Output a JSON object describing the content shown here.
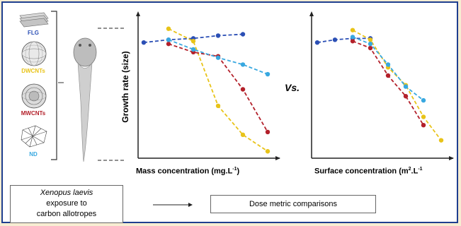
{
  "materials": [
    {
      "label": "FLG",
      "color": "#2b4fb5"
    },
    {
      "label": "DWCNTs",
      "color": "#e8c318"
    },
    {
      "label": "MWCNTs",
      "color": "#b3202a"
    },
    {
      "label": "ND",
      "color": "#38a8e0"
    }
  ],
  "ylabel": "Growth rate (size)",
  "vs_label": "Vs.",
  "bottom": {
    "exposure_line1": "Xenopus laevis",
    "exposure_line2": "exposure to",
    "exposure_line3": "carbon allotropes",
    "comparison": "Dose metric comparisons"
  },
  "chart_data": [
    {
      "type": "line",
      "xlabel": "Mass concentration (mg.L",
      "xlabel_sup": "-1",
      "xlabel_close": ")",
      "ylabel": "Growth rate (size)",
      "x": [
        1,
        2,
        3,
        4,
        5,
        6
      ],
      "ylim": [
        0,
        1
      ],
      "series": [
        {
          "color": "#2b4fb5",
          "x": [
            0,
            1,
            2,
            3,
            4
          ],
          "values": [
            0.84,
            0.86,
            0.87,
            0.89,
            0.9
          ]
        },
        {
          "color": "#e8c318",
          "x": [
            1,
            2,
            3,
            4,
            5
          ],
          "values": [
            0.94,
            0.85,
            0.38,
            0.17,
            0.05
          ]
        },
        {
          "color": "#b3202a",
          "x": [
            1,
            2,
            3,
            4,
            5
          ],
          "values": [
            0.83,
            0.77,
            0.74,
            0.5,
            0.19
          ]
        },
        {
          "color": "#38a8e0",
          "x": [
            1,
            2,
            3,
            4,
            5
          ],
          "values": [
            0.86,
            0.79,
            0.73,
            0.68,
            0.61
          ]
        }
      ]
    },
    {
      "type": "line",
      "xlabel": "Surface concentration (m",
      "xlabel_sup": "2",
      "xlabel_close": ".L",
      "xlabel_sup2": "-1",
      "ylabel": "Growth rate (size)",
      "ylim": [
        0,
        1
      ],
      "series": [
        {
          "color": "#2b4fb5",
          "x": [
            0,
            1,
            2,
            3
          ],
          "values": [
            0.84,
            0.86,
            0.87,
            0.87
          ]
        },
        {
          "color": "#e8c318",
          "x": [
            2,
            3,
            4,
            5,
            6,
            7
          ],
          "values": [
            0.93,
            0.86,
            0.66,
            0.53,
            0.3,
            0.13
          ]
        },
        {
          "color": "#b3202a",
          "x": [
            2,
            3,
            4,
            5,
            6
          ],
          "values": [
            0.85,
            0.8,
            0.6,
            0.45,
            0.24
          ]
        },
        {
          "color": "#38a8e0",
          "x": [
            2,
            3,
            4,
            5,
            6
          ],
          "values": [
            0.88,
            0.83,
            0.68,
            0.52,
            0.42
          ]
        }
      ]
    }
  ]
}
